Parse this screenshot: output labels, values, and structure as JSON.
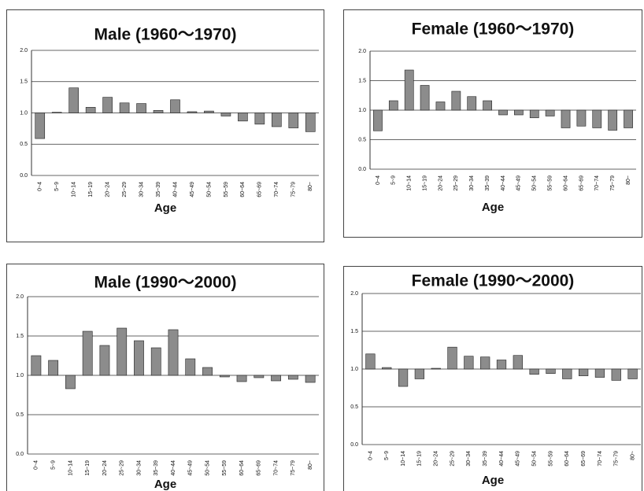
{
  "chart_data": [
    {
      "type": "bar",
      "title": "Male (1960～1970)",
      "xlabel": "Age",
      "categories": [
        "0~4",
        "5~9",
        "10~14",
        "15~19",
        "20~24",
        "25~29",
        "30~34",
        "35~39",
        "40~44",
        "45~49",
        "50~54",
        "55~59",
        "60~64",
        "65~69",
        "70~74",
        "75~79",
        "80~"
      ],
      "values": [
        0.59,
        1.01,
        1.4,
        1.09,
        1.25,
        1.16,
        1.15,
        1.04,
        1.21,
        1.02,
        1.03,
        0.95,
        0.87,
        0.82,
        0.78,
        0.76,
        0.7
      ],
      "bar_base": 1,
      "color": "#8c8c8c",
      "ylim": [
        0,
        2
      ],
      "yticks": [
        {
          "value": 0,
          "label": "0.0"
        },
        0.5,
        {
          "value": 1,
          "label": "1.0"
        },
        1.5,
        {
          "value": 2,
          "label": "2.0"
        }
      ],
      "grid": true
    },
    {
      "type": "bar",
      "title": "Female (1960～1970)",
      "xlabel": "Age",
      "categories": [
        "0~4",
        "5~9",
        "10~14",
        "15~19",
        "20~24",
        "25~29",
        "30~34",
        "35~39",
        "40~44",
        "45~49",
        "50~54",
        "55~59",
        "60~64",
        "65~69",
        "70~74",
        "75~79",
        "80~"
      ],
      "values": [
        0.65,
        1.16,
        1.68,
        1.42,
        1.14,
        1.32,
        1.23,
        1.16,
        0.92,
        0.92,
        0.87,
        0.9,
        0.7,
        0.73,
        0.7,
        0.66,
        0.7
      ],
      "bar_base": 1,
      "color": "#8c8c8c",
      "ylim": [
        0,
        2
      ],
      "yticks": [
        {
          "value": 0,
          "label": "0.0"
        },
        0.5,
        {
          "value": 1,
          "label": "1.0"
        },
        1.5,
        {
          "value": 2,
          "label": "2.0"
        }
      ],
      "grid": true
    },
    {
      "type": "bar",
      "title": "Male (1990～2000)",
      "xlabel": "Age",
      "categories": [
        "0~4",
        "5~9",
        "10~14",
        "15~19",
        "20~24",
        "25~29",
        "30~34",
        "35~39",
        "40~44",
        "45~49",
        "50~54",
        "55~59",
        "60~64",
        "65~69",
        "70~74",
        "75~79",
        "80~"
      ],
      "values": [
        1.25,
        1.19,
        0.83,
        1.56,
        1.38,
        1.6,
        1.44,
        1.35,
        1.58,
        1.21,
        1.1,
        0.98,
        0.92,
        0.97,
        0.93,
        0.95,
        0.91
      ],
      "bar_base": 1,
      "color": "#8c8c8c",
      "ylim": [
        0,
        2
      ],
      "yticks": [
        {
          "value": 0,
          "label": "0.0"
        },
        0.5,
        {
          "value": 1,
          "label": "1.0"
        },
        1.5,
        {
          "value": 2,
          "label": "2.0"
        }
      ],
      "grid": true
    },
    {
      "type": "bar",
      "title": "Female (1990～2000)",
      "xlabel": "Age",
      "categories": [
        "0~4",
        "5~9",
        "10~14",
        "15~19",
        "20~24",
        "25~29",
        "30~34",
        "35~39",
        "40~44",
        "45~49",
        "50~54",
        "55~59",
        "60~64",
        "65~69",
        "70~74",
        "75~79",
        "80~"
      ],
      "values": [
        1.2,
        1.02,
        0.77,
        0.87,
        1.01,
        1.29,
        1.17,
        1.16,
        1.12,
        1.18,
        0.93,
        0.94,
        0.87,
        0.91,
        0.89,
        0.85,
        0.87
      ],
      "bar_base": 1,
      "color": "#8c8c8c",
      "ylim": [
        0,
        2
      ],
      "yticks": [
        {
          "value": 0,
          "label": "0.0"
        },
        0.5,
        {
          "value": 1,
          "label": "1.0"
        },
        1.5,
        {
          "value": 2,
          "label": "2.0"
        }
      ],
      "grid": true
    }
  ]
}
